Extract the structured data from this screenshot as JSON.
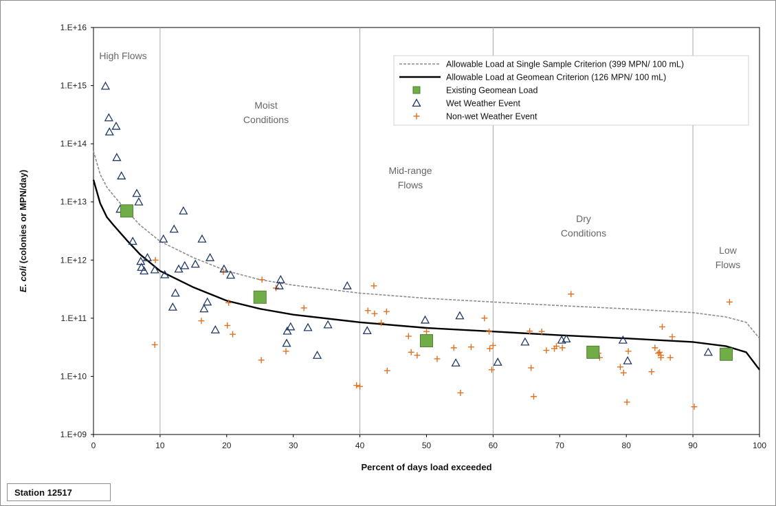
{
  "station_label": "Station 12517",
  "chart_data": {
    "type": "scatter",
    "xlabel": "Percent of days load exceeded",
    "ylabel_italic": "E. coli",
    "ylabel_rest": " (colonies or MPN/day)",
    "xlim": [
      0,
      100
    ],
    "ylim": [
      1000000000.0,
      1e+16
    ],
    "yscale": "log",
    "x_ticks": [
      "0",
      "10",
      "20",
      "30",
      "40",
      "50",
      "60",
      "70",
      "80",
      "90",
      "100"
    ],
    "y_ticks": [
      "1.E+09",
      "1.E+10",
      "1.E+11",
      "1.E+12",
      "1.E+13",
      "1.E+14",
      "1.E+15",
      "1.E+16"
    ],
    "regime_boundaries": [
      10,
      40,
      60,
      90
    ],
    "regimes": [
      {
        "lines": [
          "High Flows"
        ]
      },
      {
        "lines": [
          "Moist",
          "Conditions"
        ]
      },
      {
        "lines": [
          "Mid-range",
          "Flows"
        ]
      },
      {
        "lines": [
          "Dry",
          "Conditions"
        ]
      },
      {
        "lines": [
          "Low",
          "Flows"
        ]
      }
    ],
    "legend_placement": "top-right",
    "legend": [
      "Allowable Load at Single Sample Criterion (399 MPN/ 100 mL)",
      "Allowable Load at Geomean Criterion (126 MPN/ 100 mL)",
      "Existing Geomean Load",
      "Wet Weather Event",
      "Non-wet Weather Event"
    ],
    "colors": {
      "single_sample": "#8c8c8c",
      "geomean": "#000000",
      "existing_fill": "#70ad47",
      "existing_edge": "#507e32",
      "wet": "#1f3864",
      "nonwet": "#e07020"
    },
    "series": [
      {
        "name": "Allowable Load at Single Sample Criterion (399 MPN/ 100 mL)",
        "kind": "line",
        "x": [
          0,
          1,
          2,
          3,
          5,
          7,
          10,
          15,
          20,
          25,
          30,
          40,
          50,
          60,
          70,
          80,
          90,
          95,
          98,
          100
        ],
        "y": [
          75000000000000.0,
          30000000000000.0,
          18000000000000.0,
          13000000000000.0,
          7000000000000.0,
          4000000000000.0,
          2100000000000.0,
          1100000000000.0,
          650000000000.0,
          460000000000.0,
          370000000000.0,
          270000000000.0,
          220000000000.0,
          190000000000.0,
          165000000000.0,
          145000000000.0,
          125000000000.0,
          105000000000.0,
          85000000000.0,
          45000000000.0
        ]
      },
      {
        "name": "Allowable Load at Geomean Criterion (126 MPN/ 100 mL)",
        "kind": "line",
        "x": [
          0,
          1,
          2,
          3,
          5,
          7,
          10,
          15,
          20,
          25,
          30,
          40,
          50,
          60,
          70,
          80,
          90,
          95,
          98,
          100
        ],
        "y": [
          24000000000000.0,
          9500000000000.0,
          5500000000000.0,
          4000000000000.0,
          2200000000000.0,
          1250000000000.0,
          650000000000.0,
          340000000000.0,
          200000000000.0,
          145000000000.0,
          115000000000.0,
          85000000000.0,
          68000000000.0,
          59000000000.0,
          51000000000.0,
          45000000000.0,
          39000000000.0,
          33000000000.0,
          26000000000.0,
          13000000000.0
        ]
      },
      {
        "name": "Existing Geomean Load",
        "kind": "square",
        "x": [
          5,
          25,
          50,
          75,
          95
        ],
        "y": [
          7000000000000.0,
          230000000000.0,
          41000000000.0,
          26000000000.0,
          24000000000.0
        ]
      },
      {
        "name": "Wet Weather Event",
        "kind": "triangle",
        "x": [
          1.8,
          2.3,
          2.4,
          3.4,
          3.5,
          4.2,
          4,
          6.5,
          6.8,
          5.9,
          7.1,
          7.2,
          7.6,
          8.1,
          9.2,
          10.5,
          10.7,
          12.3,
          11.9,
          12.1,
          12.8,
          13.5,
          13.7,
          15.3,
          16.3,
          16.6,
          17.1,
          17.5,
          18.3,
          19.6,
          20.6,
          28.1,
          27.9,
          29.1,
          29,
          29.6,
          32.2,
          33.6,
          35.2,
          38.1,
          41.1,
          49.8,
          54.4,
          55,
          60.7,
          64.8,
          70.3,
          71,
          79.5,
          80.2,
          92.3
        ],
        "y": [
          980000000000000.0,
          280000000000000.0,
          160000000000000.0,
          200000000000000.0,
          58000000000000.0,
          28000000000000.0,
          7500000000000.0,
          14000000000000.0,
          10000000000000.0,
          2100000000000.0,
          950000000000.0,
          750000000000.0,
          650000000000.0,
          1100000000000.0,
          680000000000.0,
          2300000000000.0,
          560000000000.0,
          270000000000.0,
          155000000000.0,
          3400000000000.0,
          700000000000.0,
          7000000000000.0,
          800000000000.0,
          850000000000.0,
          2300000000000.0,
          145000000000.0,
          190000000000.0,
          1100000000000.0,
          63000000000.0,
          700000000000.0,
          550000000000.0,
          460000000000.0,
          360000000000.0,
          60000000000.0,
          37000000000.0,
          71000000000.0,
          69000000000.0,
          23000000000.0,
          77000000000.0,
          360000000000.0,
          61000000000.0,
          93000000000.0,
          17000000000.0,
          110000000000.0,
          17500000000.0,
          39000000000.0,
          42000000000.0,
          44000000000.0,
          42000000000.0,
          18500000000.0,
          26000000000.0
        ]
      },
      {
        "name": "Non-wet Weather Event",
        "kind": "plus",
        "x": [
          9.3,
          9.2,
          16.2,
          19.5,
          20.3,
          20.1,
          20.9,
          25.3,
          25.2,
          27.4,
          28.9,
          31.6,
          39.5,
          40,
          41.2,
          42.1,
          42.2,
          43.2,
          44,
          44.1,
          47.3,
          47.7,
          48.6,
          50,
          51.6,
          54.1,
          55.1,
          56.7,
          58.7,
          59.4,
          59.5,
          59.8,
          60,
          66.1,
          65.7,
          65.5,
          67.3,
          68,
          69.2,
          70.4,
          69.5,
          71.7,
          75.8,
          75.5,
          76,
          79.1,
          79.6,
          80.1,
          80.3,
          83.8,
          84.3,
          85,
          85.2,
          85.4,
          85.2,
          84.8,
          86.6,
          86.9,
          90.2,
          95.5
        ],
        "y": [
          1000000000000.0,
          35000000000.0,
          90000000000.0,
          630000000000.0,
          185000000000.0,
          75000000000.0,
          53000000000.0,
          460000000000.0,
          19000000000.0,
          330000000000.0,
          27000000000.0,
          150000000000.0,
          7000000000.0,
          6700000000.0,
          135000000000.0,
          360000000000.0,
          120000000000.0,
          83000000000.0,
          130000000000.0,
          12500000000.0,
          49000000000.0,
          26000000000.0,
          23000000000.0,
          59000000000.0,
          20000000000.0,
          31000000000.0,
          5200000000.0,
          32000000000.0,
          100000000000.0,
          59000000000.0,
          30000000000.0,
          13000000000.0,
          34000000000.0,
          4500000000.0,
          14000000000.0,
          60000000000.0,
          59000000000.0,
          28000000000.0,
          30000000000.0,
          31000000000.0,
          33000000000.0,
          260000000000.0,
          25000000000.0,
          29000000000.0,
          21000000000.0,
          14500000000.0,
          11500000000.0,
          3600000000.0,
          27000000000.0,
          12000000000.0,
          31000000000.0,
          26000000000.0,
          23000000000.0,
          71000000000.0,
          21000000000.0,
          25000000000.0,
          21000000000.0,
          48000000000.0,
          3000000000.0,
          190000000000.0
        ]
      }
    ]
  }
}
